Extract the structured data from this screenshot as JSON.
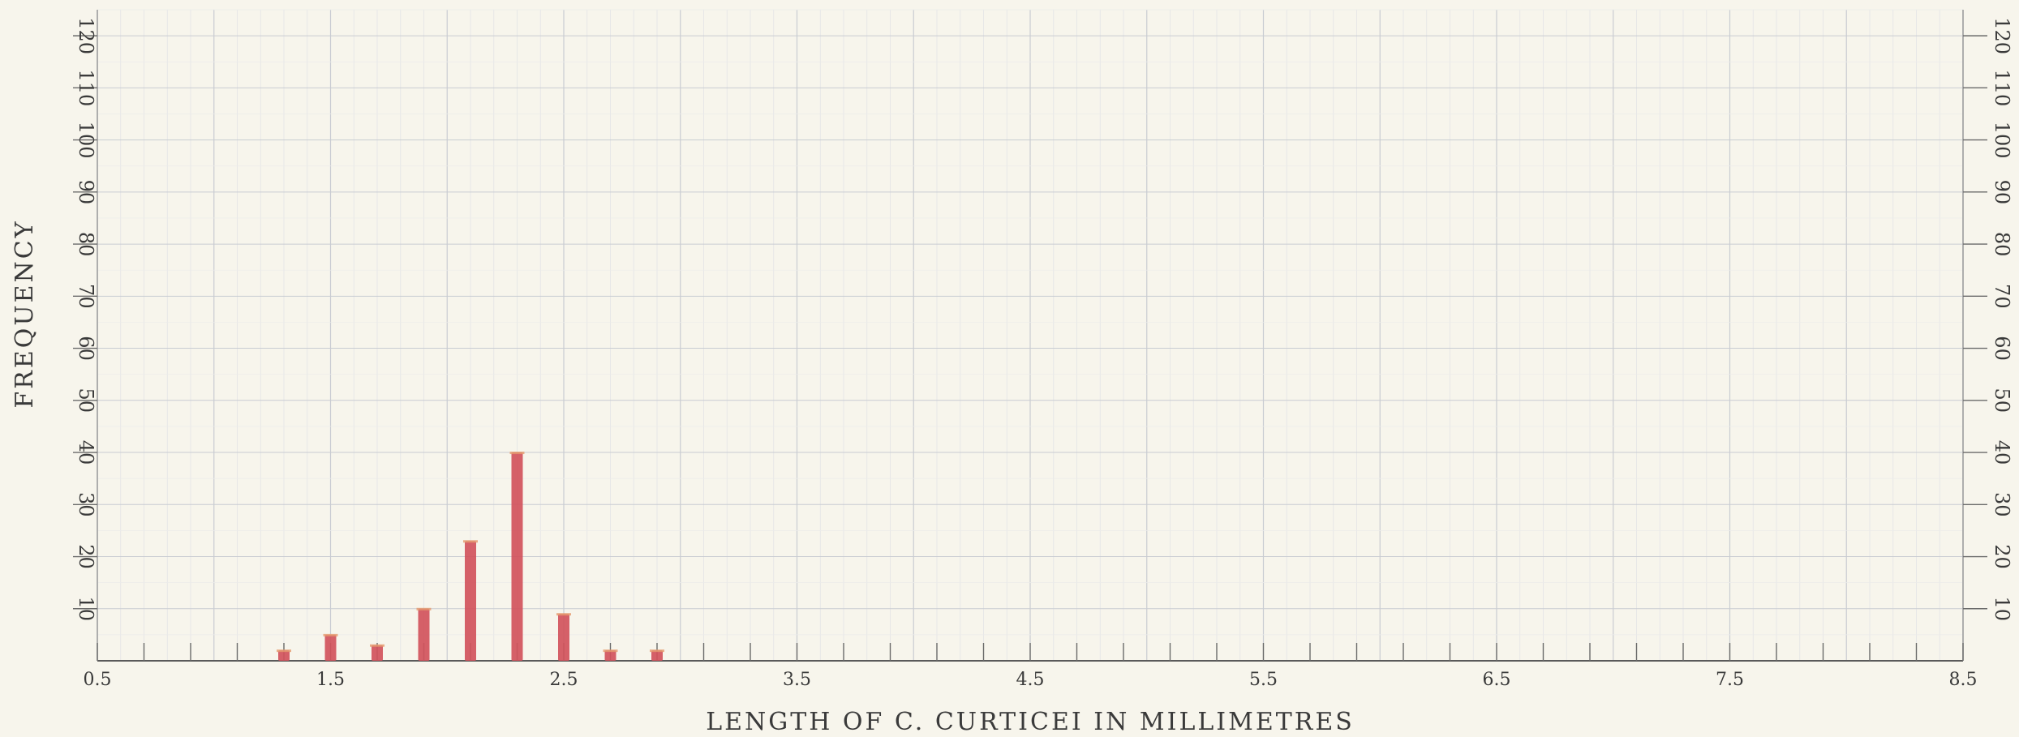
{
  "chart_data": {
    "type": "bar",
    "xlabel": "LENGTH OF C. CURTICEI IN MILLIMETRES",
    "ylabel": "FREQUENCY",
    "xlim": [
      0.5,
      8.5
    ],
    "ylim": [
      0,
      125
    ],
    "x_tick_labels": [
      "0.5",
      "1.5",
      "2.5",
      "3.5",
      "4.5",
      "5.5",
      "6.5",
      "7.5",
      "8.5"
    ],
    "y_tick_labels": [
      "10",
      "20",
      "30",
      "40",
      "50",
      "60",
      "70",
      "80",
      "90",
      "100",
      "110",
      "120"
    ],
    "right_axis_tick_labels": [
      "10",
      "20",
      "30",
      "40",
      "50",
      "60",
      "70",
      "80",
      "90",
      "100",
      "110",
      "120"
    ],
    "grid": true,
    "bar_color": "#d1535c",
    "background_color": "#f7f5ec",
    "x": [
      1.3,
      1.5,
      1.7,
      1.9,
      2.1,
      2.3,
      2.5,
      2.7,
      2.9
    ],
    "values": [
      2,
      5,
      3,
      10,
      23,
      40,
      9,
      2,
      2
    ]
  }
}
